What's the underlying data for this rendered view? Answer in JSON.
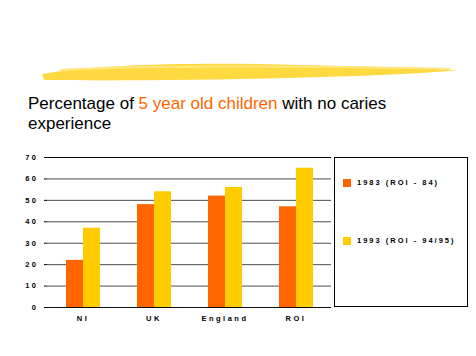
{
  "chart_data": {
    "type": "bar",
    "title": "Percentage of 5 year old children with no caries experience",
    "categories": [
      "NI",
      "UK",
      "England",
      "ROI"
    ],
    "series": [
      {
        "name": "1983 (ROI - 84)",
        "color": "#ff6600",
        "values": [
          22,
          48,
          52,
          47
        ]
      },
      {
        "name": "1993 (ROI - 94/95)",
        "color": "#ffcc00",
        "values": [
          37,
          54,
          56,
          65
        ]
      }
    ],
    "ylim": [
      0,
      70
    ],
    "yticks": [
      0,
      10,
      20,
      30,
      40,
      50,
      60,
      70
    ],
    "grid": true,
    "legend": "right"
  }
}
